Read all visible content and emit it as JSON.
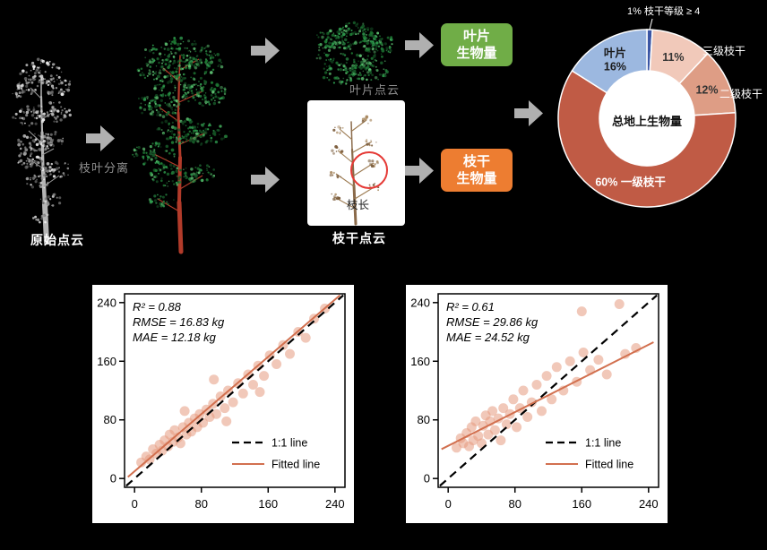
{
  "pipeline": {
    "original_point_cloud_label": "原始点云",
    "branch_leaf_separation_label": "枝叶分离",
    "leaf_point_cloud_label": "叶片点云",
    "branch_point_cloud_label": "枝干点云",
    "branch_length_label": "枝长",
    "leaf_biomass_box": {
      "line1": "叶片",
      "line2": "生物量",
      "color": "#70ad47"
    },
    "branch_biomass_box": {
      "line1": "枝干",
      "line2": "生物量",
      "color": "#ed7d31"
    },
    "arrow_color": "#b0b0b0"
  },
  "chart_data": [
    {
      "type": "pie",
      "name": "aboveground-biomass-composition-donut",
      "center_label": "总地上生物量",
      "slices": [
        {
          "label": "枝干等级 ≥ 4",
          "value": 1,
          "color": "#3a55a4",
          "inner": [],
          "outside_label": "1% 枝干等级 ≥ 4"
        },
        {
          "label": "三级枝干",
          "value": 11,
          "color": "#f1c9ba",
          "inner": [
            "11%"
          ],
          "inner_color": "#333333",
          "outside_label": "三级枝干"
        },
        {
          "label": "二级枝干",
          "value": 12,
          "color": "#de9d85",
          "inner": [
            "12%"
          ],
          "inner_color": "#333333",
          "outside_label": "二级枝干"
        },
        {
          "label": "一级枝干",
          "value": 60,
          "color": "#c05b45",
          "inner": [
            "60% 一级枝干"
          ],
          "inner_color": "#ffffff"
        },
        {
          "label": "叶片",
          "value": 16,
          "color": "#9cb8e0",
          "inner": [
            "叶片",
            "16%"
          ],
          "inner_color": "#1a1a1a"
        }
      ]
    },
    {
      "type": "scatter",
      "name": "validation-scatter-left",
      "stats": [
        "R² = 0.88",
        "RMSE = 16.83 kg",
        "MAE = 12.18 kg"
      ],
      "axis_ticks": [
        0,
        80,
        160,
        240
      ],
      "axis_range": [
        -12,
        252
      ],
      "legend": {
        "one_to_one": "1:1 line",
        "fitted": "Fitted line"
      },
      "one_to_one_line": [
        [
          -10,
          -10
        ],
        [
          250,
          250
        ]
      ],
      "fit_line": [
        [
          -8,
          2
        ],
        [
          246,
          250
        ]
      ],
      "point_color": "#e69b80",
      "line_color": "#d2704f",
      "points": [
        [
          8,
          22
        ],
        [
          14,
          30
        ],
        [
          18,
          26
        ],
        [
          22,
          40
        ],
        [
          26,
          34
        ],
        [
          30,
          46
        ],
        [
          33,
          38
        ],
        [
          36,
          52
        ],
        [
          40,
          44
        ],
        [
          42,
          60
        ],
        [
          46,
          50
        ],
        [
          48,
          66
        ],
        [
          52,
          56
        ],
        [
          55,
          48
        ],
        [
          58,
          70
        ],
        [
          62,
          60
        ],
        [
          65,
          76
        ],
        [
          68,
          64
        ],
        [
          72,
          82
        ],
        [
          75,
          70
        ],
        [
          78,
          88
        ],
        [
          82,
          76
        ],
        [
          86,
          94
        ],
        [
          90,
          84
        ],
        [
          94,
          102
        ],
        [
          98,
          88
        ],
        [
          103,
          112
        ],
        [
          108,
          96
        ],
        [
          112,
          120
        ],
        [
          118,
          104
        ],
        [
          124,
          130
        ],
        [
          130,
          116
        ],
        [
          136,
          142
        ],
        [
          142,
          128
        ],
        [
          148,
          154
        ],
        [
          155,
          140
        ],
        [
          162,
          168
        ],
        [
          170,
          156
        ],
        [
          178,
          182
        ],
        [
          186,
          170
        ],
        [
          196,
          200
        ],
        [
          205,
          192
        ],
        [
          215,
          218
        ],
        [
          228,
          232
        ],
        [
          60,
          92
        ],
        [
          110,
          78
        ],
        [
          150,
          118
        ],
        [
          95,
          135
        ]
      ]
    },
    {
      "type": "scatter",
      "name": "validation-scatter-right",
      "stats": [
        "R² = 0.61",
        "RMSE = 29.86 kg",
        "MAE = 24.52 kg"
      ],
      "axis_ticks": [
        0,
        80,
        160,
        240
      ],
      "axis_range": [
        -12,
        252
      ],
      "legend": {
        "one_to_one": "1:1 line",
        "fitted": "Fitted line"
      },
      "one_to_one_line": [
        [
          -10,
          -10
        ],
        [
          250,
          250
        ]
      ],
      "fit_line": [
        [
          -8,
          40
        ],
        [
          246,
          186
        ]
      ],
      "point_color": "#e69b80",
      "line_color": "#d2704f",
      "points": [
        [
          10,
          42
        ],
        [
          15,
          55
        ],
        [
          18,
          48
        ],
        [
          22,
          62
        ],
        [
          25,
          44
        ],
        [
          28,
          70
        ],
        [
          30,
          52
        ],
        [
          33,
          78
        ],
        [
          36,
          58
        ],
        [
          40,
          48
        ],
        [
          42,
          72
        ],
        [
          45,
          86
        ],
        [
          48,
          60
        ],
        [
          50,
          78
        ],
        [
          53,
          92
        ],
        [
          56,
          66
        ],
        [
          60,
          82
        ],
        [
          63,
          52
        ],
        [
          66,
          96
        ],
        [
          70,
          74
        ],
        [
          74,
          88
        ],
        [
          78,
          108
        ],
        [
          82,
          70
        ],
        [
          86,
          96
        ],
        [
          90,
          120
        ],
        [
          95,
          84
        ],
        [
          100,
          104
        ],
        [
          106,
          128
        ],
        [
          112,
          92
        ],
        [
          118,
          140
        ],
        [
          124,
          108
        ],
        [
          130,
          152
        ],
        [
          138,
          120
        ],
        [
          146,
          160
        ],
        [
          154,
          132
        ],
        [
          160,
          228
        ],
        [
          162,
          172
        ],
        [
          170,
          148
        ],
        [
          180,
          162
        ],
        [
          190,
          142
        ],
        [
          205,
          238
        ],
        [
          212,
          170
        ],
        [
          225,
          178
        ]
      ]
    }
  ]
}
